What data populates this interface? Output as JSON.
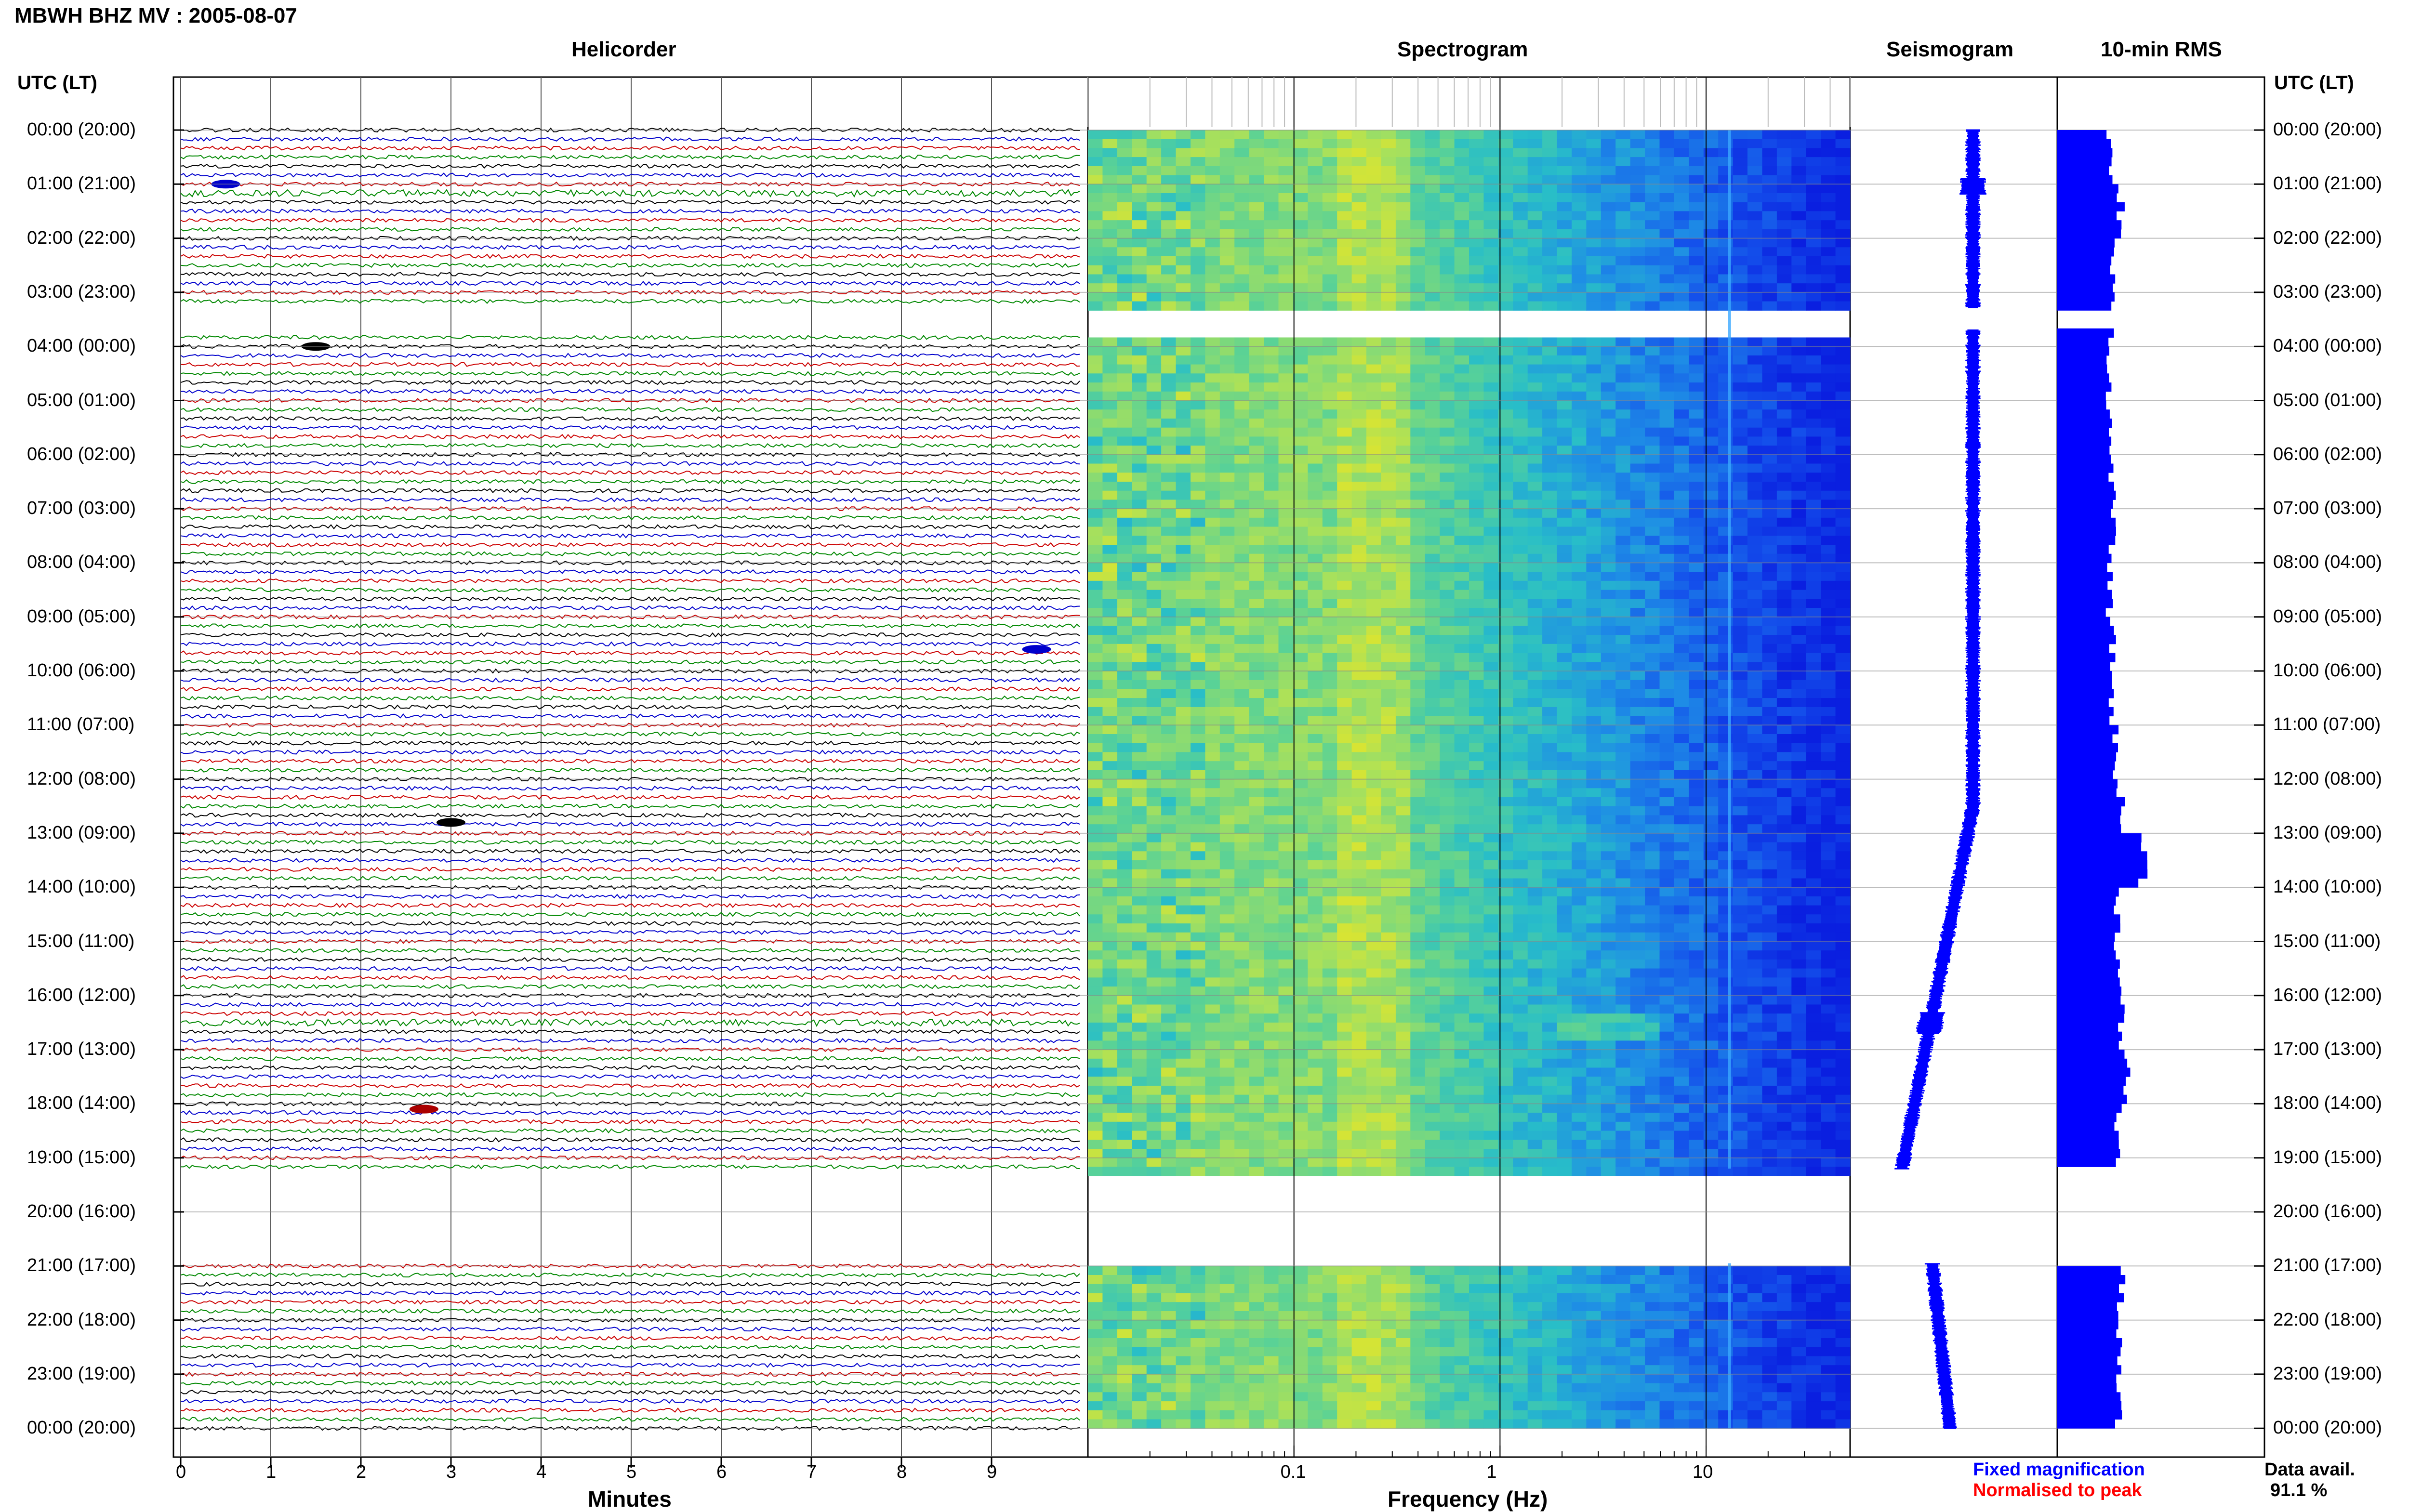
{
  "title": "MBWH BHZ MV : 2005-08-07",
  "panels": {
    "helicorder": "Helicorder",
    "spectrogram": "Spectrogram",
    "seismogram": "Seismogram",
    "rms": "10-min RMS"
  },
  "time_axis_title": "UTC (LT)",
  "time_labels": [
    "00:00 (20:00)",
    "01:00 (21:00)",
    "02:00 (22:00)",
    "03:00 (23:00)",
    "04:00 (00:00)",
    "05:00 (01:00)",
    "06:00 (02:00)",
    "07:00 (03:00)",
    "08:00 (04:00)",
    "09:00 (05:00)",
    "10:00 (06:00)",
    "11:00 (07:00)",
    "12:00 (08:00)",
    "13:00 (09:00)",
    "14:00 (10:00)",
    "15:00 (11:00)",
    "16:00 (12:00)",
    "17:00 (13:00)",
    "18:00 (14:00)",
    "19:00 (15:00)",
    "20:00 (16:00)",
    "21:00 (17:00)",
    "22:00 (18:00)",
    "23:00 (19:00)",
    "00:00 (20:00)"
  ],
  "helicorder_xlabel": "Minutes",
  "spectrogram_xlabel": "Frequency (Hz)",
  "legend": {
    "fixed": "Fixed magnification",
    "normalised": "Normalised to peak",
    "fixed_color": "#0000ff",
    "normalised_color": "#ff0000"
  },
  "data_avail": {
    "label": "Data avail.",
    "value": "91.1 %"
  },
  "colors": {
    "trace_cycle": [
      "#000000",
      "#0000cc",
      "#cc0000",
      "#008800"
    ],
    "spec_low": "#0a1fe0",
    "spec_high": "#ffe000",
    "rms_bar": "#0000ff"
  },
  "chart_data": [
    {
      "type": "line",
      "title": "Helicorder",
      "xlabel": "Minutes",
      "x_ticks": [
        "0",
        "1",
        "2",
        "3",
        "4",
        "5",
        "6",
        "7",
        "8",
        "9"
      ],
      "xlim": [
        0,
        10
      ],
      "rows_per_hour": 6,
      "data_gaps_utc_hours": [
        [
          3.3,
          3.7
        ],
        [
          19.2,
          20.95
        ]
      ],
      "events": [
        {
          "hour": 1.0,
          "minute": 0.5,
          "color": "blue"
        },
        {
          "hour": 4.0,
          "minute": 1.5,
          "color": "black"
        },
        {
          "hour": 9.6,
          "minute": 9.5,
          "color": "blue"
        },
        {
          "hour": 12.8,
          "minute": 3.0,
          "color": "black"
        },
        {
          "hour": 18.1,
          "minute": 2.7,
          "color": "red"
        }
      ]
    },
    {
      "type": "heatmap",
      "title": "Spectrogram",
      "xlabel": "Frequency (Hz)",
      "x_scale": "log",
      "x_ticks": [
        "0.1",
        "1",
        "10"
      ],
      "xlim": [
        0.01,
        50
      ],
      "persistent_line_hz": 13,
      "microseism_peak_hz": [
        0.2,
        0.35
      ]
    },
    {
      "type": "line",
      "title": "Seismogram",
      "description_offset_drift": "trace drifts left from 13:00 to 19:00"
    },
    {
      "type": "bar",
      "title": "10-min RMS",
      "orientation": "horizontal",
      "categories_utc_hour": [
        0,
        1,
        2,
        3,
        4,
        5,
        6,
        7,
        8,
        9,
        10,
        11,
        12,
        13,
        14,
        15,
        16,
        17,
        18,
        19,
        21,
        22,
        23
      ],
      "values_relative": [
        0.9,
        1.1,
        0.95,
        0.95,
        0.9,
        0.9,
        0.95,
        0.95,
        0.9,
        0.95,
        0.95,
        1.0,
        1.1,
        1.5,
        1.05,
        1.05,
        1.1,
        1.2,
        1.05,
        1.05,
        1.1,
        1.05,
        1.05
      ]
    }
  ]
}
